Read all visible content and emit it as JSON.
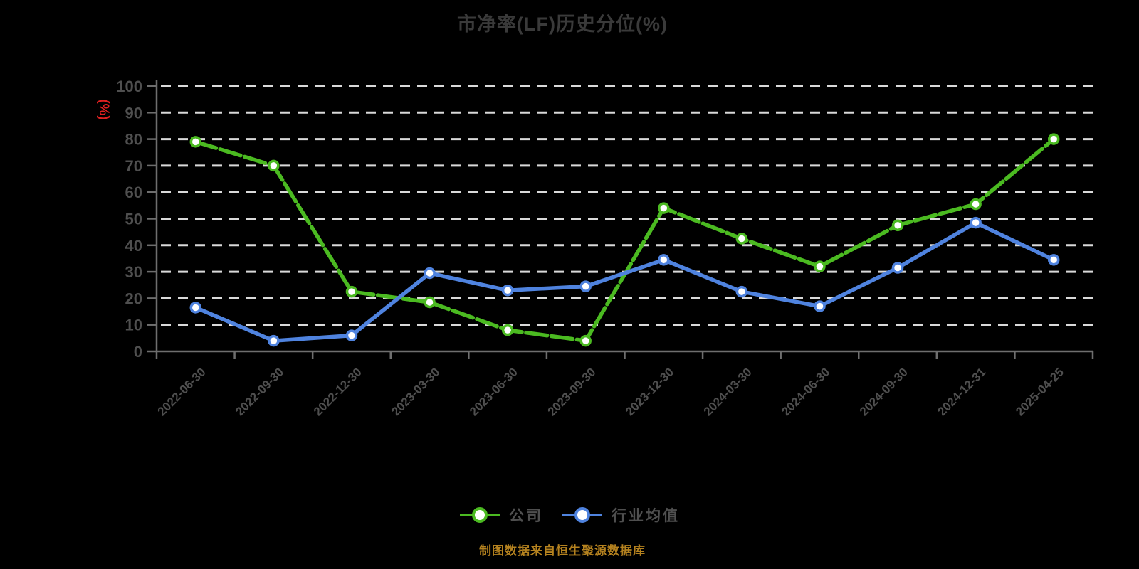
{
  "title": "市净率(LF)历史分位(%)",
  "y_axis_unit_label": "(%)",
  "source_note": "制图数据来自恒生聚源数据库",
  "colors": {
    "background": "#000000",
    "title_text": "#3A3A3A",
    "axis_line": "#6E6E6E",
    "tick_label": "#4F4F4F",
    "gridline": "#D9D9D9",
    "y_unit_label": "#E02020",
    "legend_text": "#4F4F4F",
    "source_text": "#B5821F",
    "marker_fill": "#FFFFFF"
  },
  "chart_data": {
    "type": "line",
    "title": "市净率(LF)历史分位(%)",
    "ylabel": "(%)",
    "ylim": [
      0,
      100
    ],
    "y_ticks": [
      0,
      10,
      20,
      30,
      40,
      50,
      60,
      70,
      80,
      90,
      100
    ],
    "grid": "horizontal-dashed-white",
    "legend_position": "bottom",
    "categories": [
      "2022-06-30",
      "2022-09-30",
      "2022-12-30",
      "2023-03-30",
      "2023-06-30",
      "2023-09-30",
      "2023-12-30",
      "2024-03-30",
      "2024-06-30",
      "2024-09-30",
      "2024-12-31",
      "2025-04-25"
    ],
    "series": [
      {
        "name": "公司",
        "color": "#4BBA21",
        "line_style": "dashed",
        "marker": "circle-white-fill",
        "values": [
          79,
          70,
          22.5,
          18.5,
          8,
          4,
          54,
          42.5,
          32,
          47.5,
          55.5,
          80
        ]
      },
      {
        "name": "行业均值",
        "color": "#4F83DF",
        "line_style": "solid",
        "marker": "circle-white-fill",
        "values": [
          16.5,
          4,
          6,
          29.5,
          23,
          24.5,
          34.5,
          22.5,
          17,
          31.5,
          48.5,
          34.5
        ]
      }
    ]
  }
}
